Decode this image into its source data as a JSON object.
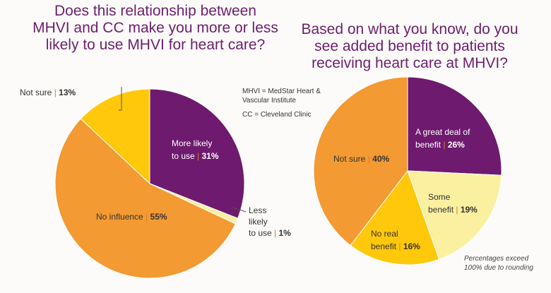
{
  "chart_data": [
    {
      "type": "pie",
      "title": "Does this relationship between\nMHVI and CC make you more or less\nlikely to use MHVI for heart care?",
      "slices": [
        {
          "label": "More likely to use",
          "value": 31,
          "color": "#6e1a6e"
        },
        {
          "label": "Less likely to use",
          "value": 1,
          "color": "#faf0a0"
        },
        {
          "label": "No influence",
          "value": 55,
          "color": "#f39a33"
        },
        {
          "label": "Not sure",
          "value": 13,
          "color": "#ffc80a"
        }
      ],
      "labels": [
        {
          "lines": [
            "More likely",
            "to use"
          ],
          "value": "31%",
          "text_color": "#ffffff"
        },
        {
          "lines": [
            "Less",
            "likely",
            "to use"
          ],
          "value": "1%",
          "text_color": "#333333"
        },
        {
          "lines": [
            "No influence"
          ],
          "value": "55%",
          "text_color": "#333333"
        },
        {
          "lines": [
            "Not sure"
          ],
          "value": "13%",
          "text_color": "#333333"
        }
      ]
    },
    {
      "type": "pie",
      "title": "Based on what you know, do you\nsee added benefit to patients\nreceiving heart care at MHVI?",
      "slices": [
        {
          "label": "A great deal of benefit",
          "value": 26,
          "color": "#6e1a6e"
        },
        {
          "label": "Some benefit",
          "value": 19,
          "color": "#faf0a0"
        },
        {
          "label": "No real benefit",
          "value": 16,
          "color": "#ffc80a"
        },
        {
          "label": "Not sure",
          "value": 40,
          "color": "#f39a33"
        }
      ],
      "labels": [
        {
          "lines": [
            "A great deal of",
            "benefit"
          ],
          "value": "26%",
          "text_color": "#ffffff"
        },
        {
          "lines": [
            "Some",
            "benefit"
          ],
          "value": "19%",
          "text_color": "#333333"
        },
        {
          "lines": [
            "No real",
            "benefit"
          ],
          "value": "16%",
          "text_color": "#333333"
        },
        {
          "lines": [
            "Not sure"
          ],
          "value": "40%",
          "text_color": "#333333"
        }
      ]
    }
  ],
  "legend": {
    "mhvi": "MHVI = MedStar Heart &\nVascular Institute",
    "cc": "CC = Cleveland Clinic"
  },
  "footnote": "Percentages exceed\n100% due to rounding",
  "separator": "|",
  "separator_color": "#e07a1f"
}
